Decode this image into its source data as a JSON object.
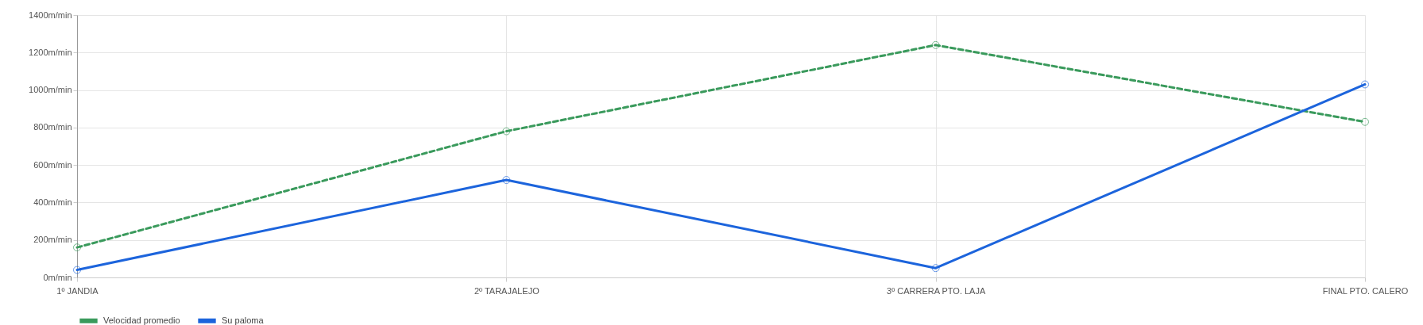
{
  "chart_data": {
    "type": "line",
    "categories": [
      "1º JANDIA",
      "2º  TARAJALEJO",
      "3º CARRERA PTO. LAJA",
      "FINAL PTO. CALERO"
    ],
    "series": [
      {
        "name": "Velocidad promedio",
        "color": "#3a9a5c",
        "line_style": "dashed",
        "values": [
          160,
          780,
          1240,
          830
        ]
      },
      {
        "name": "Su paloma",
        "color": "#1c64dc",
        "line_style": "solid",
        "values": [
          40,
          520,
          50,
          1030
        ]
      }
    ],
    "ylim": [
      0,
      1400
    ],
    "yticks": [
      {
        "value": 0,
        "label": "0m/min"
      },
      {
        "value": 200,
        "label": "200m/min"
      },
      {
        "value": 400,
        "label": "400m/min"
      },
      {
        "value": 600,
        "label": "600m/min"
      },
      {
        "value": 800,
        "label": "800m/min"
      },
      {
        "value": 1000,
        "label": "1000m/min"
      },
      {
        "value": 1200,
        "label": "1200m/min"
      },
      {
        "value": 1400,
        "label": "1400m/min"
      }
    ],
    "grid": true,
    "legend": "bottom",
    "marker": "circle"
  }
}
